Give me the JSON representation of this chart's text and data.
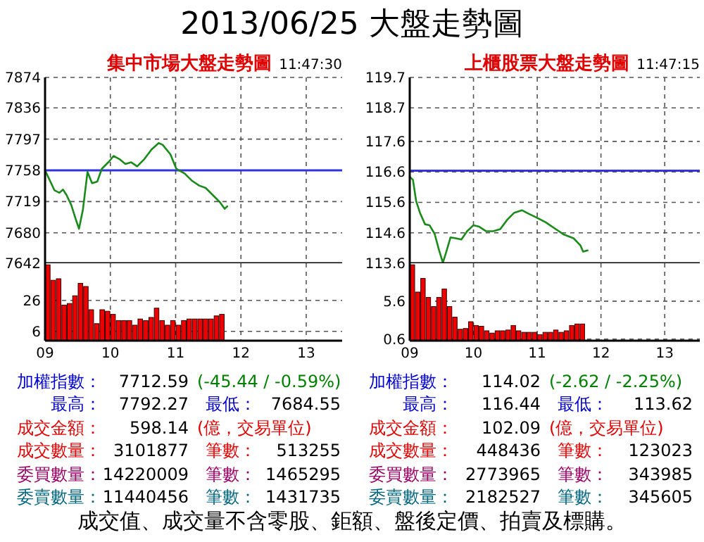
{
  "chart_data": [
    {
      "type": "other",
      "title": "2013/06/25 大盤走勢圖",
      "annotations": [
        "成交值、成交量不含零股、鉅額、盤後定價、拍賣及標購。"
      ]
    },
    {
      "type": "line",
      "title": "集中市場大盤走勢圖",
      "subtitle": "11:47:30",
      "x": [
        9.0,
        9.145,
        9.22,
        9.275,
        9.33,
        9.4,
        9.47,
        9.52,
        9.58,
        9.65,
        9.72,
        9.8,
        9.87,
        9.98,
        10.05,
        10.14,
        10.23,
        10.32,
        10.41,
        10.52,
        10.63,
        10.74,
        10.8,
        10.92,
        11.01,
        11.14,
        11.25,
        11.36,
        11.46,
        11.57,
        11.68,
        11.75,
        11.79
      ],
      "series": [
        {
          "color": "#1a8a1a",
          "values": [
            7758,
            7733,
            7730,
            7734,
            7727,
            7715,
            7697,
            7685,
            7709,
            7756,
            7742,
            7744,
            7760,
            7769,
            7776,
            7772,
            7766,
            7768,
            7763,
            7772,
            7784,
            7792,
            7790,
            7778,
            7760,
            7754,
            7745,
            7739,
            7736,
            7727,
            7718,
            7710,
            7713
          ]
        }
      ],
      "xlim": [
        9,
        13.55
      ],
      "xticks": [
        10,
        11,
        12,
        13
      ],
      "ylim": [
        7642,
        7874
      ],
      "yticks": [
        7642,
        7680,
        7719,
        7758,
        7797,
        7836,
        7874
      ],
      "ref_lines": [
        {
          "axis": "y",
          "value": 7758,
          "color": "#3333dd"
        }
      ],
      "grid": true,
      "tick_labels": "y"
    },
    {
      "type": "bar",
      "x": [
        9.042,
        9.125,
        9.208,
        9.292,
        9.375,
        9.458,
        9.542,
        9.625,
        9.708,
        9.792,
        9.875,
        9.958,
        10.042,
        10.125,
        10.208,
        10.292,
        10.375,
        10.458,
        10.542,
        10.625,
        10.708,
        10.792,
        10.875,
        10.958,
        11.042,
        11.125,
        11.208,
        11.292,
        11.375,
        11.458,
        11.542,
        11.625,
        11.708
      ],
      "series": [
        {
          "color": "#ee0000",
          "values": [
            49,
            39,
            40,
            23,
            24,
            29,
            37,
            35,
            20,
            11,
            20,
            19,
            17,
            13,
            13,
            13,
            10,
            14,
            13,
            15,
            21,
            13,
            10,
            13,
            10,
            13,
            14,
            14,
            14,
            14,
            14,
            16,
            17
          ]
        }
      ],
      "xlim": [
        9,
        13.55
      ],
      "xticks": [
        {
          "value": 9,
          "label": "09"
        },
        10,
        11,
        12,
        13
      ],
      "ylim": [
        0,
        50
      ],
      "yticks": [
        6,
        26
      ],
      "grid": true
    },
    {
      "type": "line",
      "title": "上櫃股票大盤走勢圖",
      "subtitle": "11:47:15",
      "x": [
        9.0,
        9.05,
        9.1,
        9.16,
        9.24,
        9.31,
        9.39,
        9.46,
        9.52,
        9.57,
        9.64,
        9.72,
        9.81,
        9.9,
        10.0,
        10.09,
        10.2,
        10.31,
        10.42,
        10.53,
        10.64,
        10.76,
        10.87,
        10.98,
        11.13,
        11.27,
        11.42,
        11.57,
        11.68,
        11.72,
        11.79
      ],
      "series": [
        {
          "color": "#1a8a1a",
          "values": [
            116.44,
            116.34,
            115.65,
            115.26,
            114.88,
            114.85,
            114.57,
            114.03,
            113.62,
            113.95,
            114.45,
            114.42,
            114.38,
            114.65,
            114.85,
            114.8,
            114.65,
            114.65,
            114.72,
            115.03,
            115.26,
            115.34,
            115.22,
            115.11,
            114.95,
            114.75,
            114.54,
            114.42,
            114.18,
            113.98,
            114.02
          ]
        }
      ],
      "xlim": [
        9,
        13.55
      ],
      "xticks": [
        10,
        11,
        12,
        13
      ],
      "ylim": [
        113.6,
        119.7
      ],
      "yticks": [
        113.6,
        114.6,
        115.6,
        116.6,
        117.6,
        118.7,
        119.7
      ],
      "ref_lines": [
        {
          "axis": "y",
          "value": 116.64,
          "color": "#3333dd"
        }
      ],
      "grid": true,
      "tick_labels": "y"
    },
    {
      "type": "bar",
      "x": [
        9.042,
        9.125,
        9.208,
        9.292,
        9.375,
        9.458,
        9.542,
        9.625,
        9.708,
        9.792,
        9.875,
        9.958,
        10.042,
        10.125,
        10.208,
        10.292,
        10.375,
        10.458,
        10.542,
        10.625,
        10.708,
        10.792,
        10.875,
        10.958,
        11.042,
        11.125,
        11.208,
        11.292,
        11.375,
        11.458,
        11.542,
        11.625,
        11.708
      ],
      "series": [
        {
          "color": "#ee0000",
          "values": [
            10.4,
            6.8,
            8.6,
            6.1,
            4.9,
            6.1,
            7.2,
            4.9,
            3.5,
            1.9,
            2.0,
            2.9,
            2.4,
            2.3,
            1.7,
            1.4,
            1.7,
            1.7,
            1.8,
            2.4,
            1.7,
            1.5,
            1.5,
            1.5,
            1.2,
            1.5,
            1.5,
            1.8,
            1.5,
            1.7,
            2.4,
            2.6,
            2.6
          ]
        }
      ],
      "xlim": [
        9,
        13.55
      ],
      "xticks": [
        {
          "value": 9,
          "label": "09"
        },
        10,
        11,
        12,
        13
      ],
      "ylim": [
        0.4,
        10.6
      ],
      "yticks": [
        0.6,
        5.6
      ],
      "grid": true
    },
    {
      "type": "other",
      "annotations": [
        "加權指數：",
        "7712.59",
        "(-45.44 / -0.59%)",
        "最高：",
        "7792.27",
        "最低：",
        "7684.55",
        "成交金額：",
        "598.14",
        "(億，交易單位)",
        "成交數量：",
        "3101877",
        "筆數：",
        "513255",
        "委買數量：",
        "14220009",
        "筆數：",
        "1465295",
        "委賣數量：",
        "11440456",
        "筆數：",
        "1431735"
      ],
      "colors": [
        "#0000cc",
        "#000000",
        "#008000",
        "#0000cc",
        "#000000",
        "#0000cc",
        "#000000",
        "#e00000",
        "#000000",
        "#e00000",
        "#e00000",
        "#000000",
        "#e00000",
        "#000000",
        "#990066",
        "#000000",
        "#990066",
        "#000000",
        "#006680",
        "#000000",
        "#006680",
        "#000000"
      ]
    },
    {
      "type": "other",
      "annotations": [
        "加權指數：",
        "114.02",
        "(-2.62 / -2.25%)",
        "最高：",
        "116.44",
        "最低：",
        "113.62",
        "成交金額：",
        "102.09",
        "(億，交易單位)",
        "成交數量：",
        "448436",
        "筆數：",
        "123023",
        "委買數量：",
        "2773965",
        "筆數：",
        "343985",
        "委賣數量：",
        "2182527",
        "筆數：",
        "345605"
      ],
      "colors": [
        "#0000cc",
        "#000000",
        "#008000",
        "#0000cc",
        "#000000",
        "#0000cc",
        "#000000",
        "#e00000",
        "#000000",
        "#e00000",
        "#e00000",
        "#000000",
        "#e00000",
        "#000000",
        "#990066",
        "#000000",
        "#990066",
        "#000000",
        "#006680",
        "#000000",
        "#006680",
        "#000000"
      ]
    }
  ]
}
